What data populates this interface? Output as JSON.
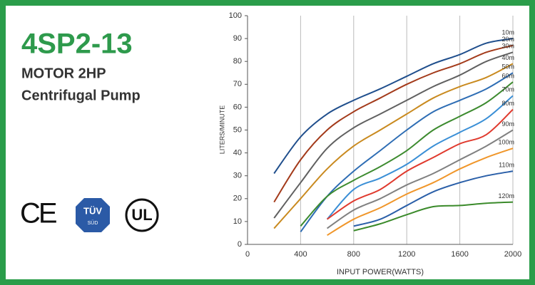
{
  "header": {
    "title": "4SP2-13",
    "subtitle": "MOTOR 2HP",
    "description": "Centrifugal Pump"
  },
  "logos": {
    "ce": "CE",
    "tuv_top": "TÜV",
    "tuv_bottom": "SÜD",
    "ul": "UL"
  },
  "chart_data": {
    "type": "line",
    "x_label": "INPUT POWER(WATTS)",
    "y_label": "LITERS/MINUTE",
    "x": [
      200,
      400,
      600,
      800,
      1000,
      1200,
      1400,
      1600,
      1800,
      2000
    ],
    "xlim": [
      0,
      2000
    ],
    "xticks": [
      0,
      400,
      800,
      1200,
      1600,
      2000
    ],
    "ylim": [
      0,
      100
    ],
    "yticks": [
      0,
      10,
      20,
      30,
      40,
      50,
      60,
      70,
      80,
      90,
      100
    ],
    "grid": true,
    "series": [
      {
        "name": "10m",
        "color": "#1f4e8c",
        "values": [
          31,
          47,
          57,
          63,
          68,
          73.5,
          79,
          83,
          88,
          90
        ]
      },
      {
        "name": "20m",
        "color": "#a33a1a",
        "values": [
          18.5,
          37,
          50,
          58,
          64,
          70,
          75,
          79,
          84,
          87
        ]
      },
      {
        "name": "30m",
        "color": "#606060",
        "values": [
          11.5,
          27,
          42,
          51,
          57,
          63,
          69,
          74,
          80,
          84
        ]
      },
      {
        "name": "40m",
        "color": "#c98a1f",
        "values": [
          7,
          20,
          33,
          43,
          50,
          57,
          64,
          69,
          73,
          79
        ]
      },
      {
        "name": "50m",
        "color": "#2e6db4",
        "values": [
          null,
          5.5,
          21,
          32,
          41,
          50,
          58,
          63,
          68,
          75
        ]
      },
      {
        "name": "60m",
        "color": "#3d8b2f",
        "values": [
          null,
          8,
          21,
          28,
          34,
          41,
          50,
          56,
          62,
          71
        ]
      },
      {
        "name": "70m",
        "color": "#3a8fd6",
        "values": [
          null,
          null,
          11,
          24,
          29,
          35,
          43,
          49,
          55,
          65
        ]
      },
      {
        "name": "80m",
        "color": "#e03a2e",
        "values": [
          null,
          null,
          11,
          19,
          24,
          32,
          38,
          44,
          48,
          59
        ]
      },
      {
        "name": "90m",
        "color": "#808080",
        "values": [
          null,
          null,
          7,
          15,
          20,
          26,
          31,
          37,
          43,
          50
        ]
      },
      {
        "name": "100m",
        "color": "#f0962a",
        "values": [
          null,
          null,
          4,
          11,
          16,
          22,
          27,
          33,
          38,
          42
        ]
      },
      {
        "name": "110m",
        "color": "#2a5fa8",
        "values": [
          null,
          null,
          null,
          8,
          11,
          17,
          23,
          27,
          30,
          32
        ]
      },
      {
        "name": "120m",
        "color": "#3a8a2a",
        "values": [
          null,
          null,
          null,
          6,
          9,
          13,
          16.5,
          17,
          18,
          18.5
        ]
      }
    ]
  }
}
